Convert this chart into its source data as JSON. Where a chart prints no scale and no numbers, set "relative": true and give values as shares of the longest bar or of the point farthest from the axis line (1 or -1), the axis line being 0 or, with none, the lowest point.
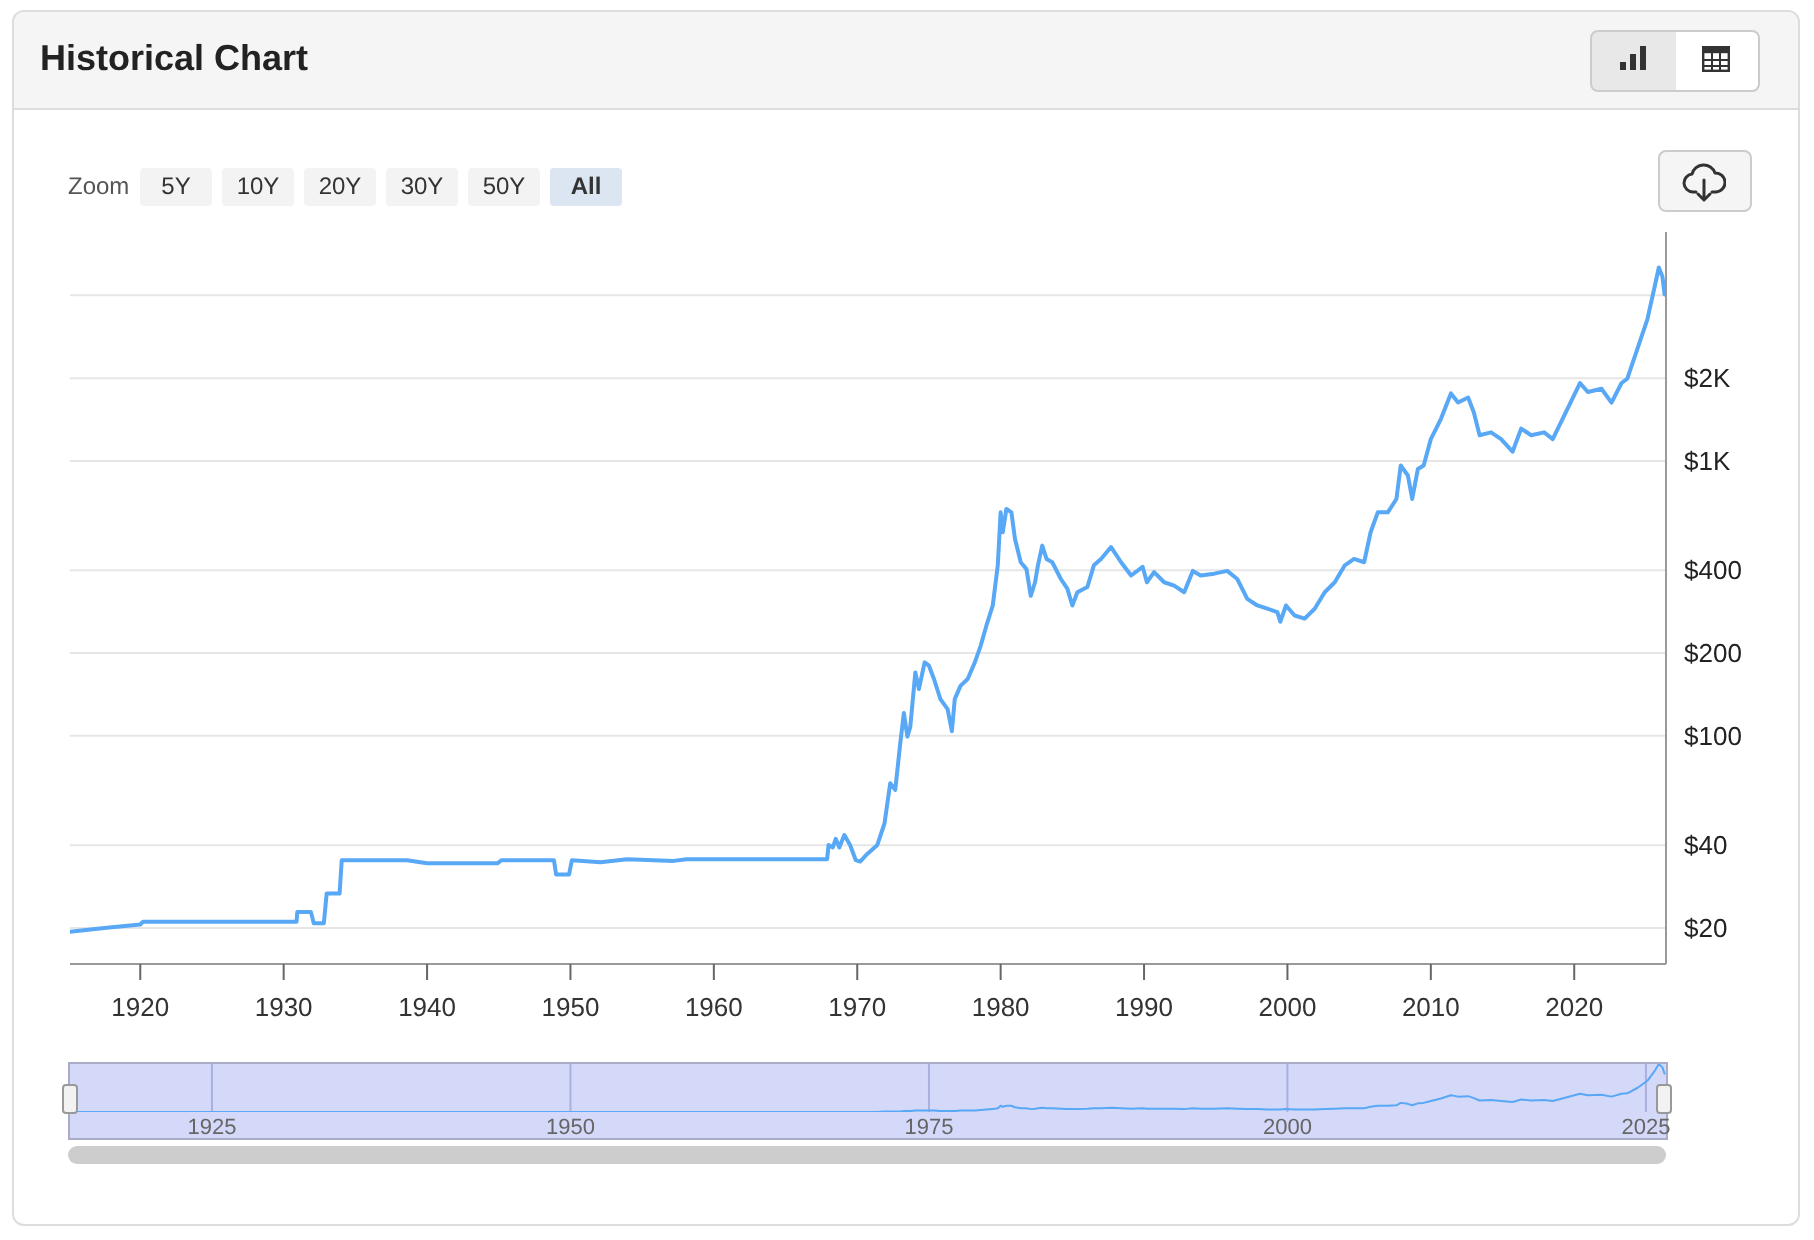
{
  "chart_data": [
    {
      "type": "line",
      "title": "Historical Chart",
      "annotations": [
        "Zoom",
        "5Y",
        "10Y",
        "20Y",
        "30Y",
        "50Y",
        "All"
      ],
      "x": [
        1915.1,
        1917.5,
        1920.0,
        1920.2,
        1930.9,
        1930.95,
        1931.9,
        1932.1,
        1932.8,
        1933.0,
        1933.9,
        1934.05,
        1938.6,
        1940.0,
        1944.9,
        1945.2,
        1948.85,
        1949.0,
        1949.9,
        1950.1,
        1952.1,
        1953.95,
        1957.2,
        1958.1,
        1967.9,
        1968.0,
        1968.3,
        1968.5,
        1968.75,
        1969.1,
        1969.5,
        1969.9,
        1970.2,
        1970.7,
        1971.4,
        1971.9,
        1972.3,
        1972.65,
        1973.0,
        1973.25,
        1973.5,
        1973.7,
        1974.05,
        1974.3,
        1974.7,
        1975.0,
        1975.35,
        1975.8,
        1976.3,
        1976.6,
        1976.8,
        1977.2,
        1977.7,
        1978.2,
        1978.6,
        1979.0,
        1979.45,
        1979.8,
        1980.0,
        1980.15,
        1980.4,
        1980.75,
        1981.0,
        1981.4,
        1981.8,
        1982.1,
        1982.4,
        1982.6,
        1982.9,
        1983.2,
        1983.6,
        1984.2,
        1984.65,
        1985.0,
        1985.35,
        1986.05,
        1986.5,
        1987.0,
        1987.7,
        1988.4,
        1989.1,
        1989.9,
        1990.2,
        1990.7,
        1991.4,
        1992.1,
        1992.8,
        1993.4,
        1993.95,
        1994.9,
        1995.8,
        1996.5,
        1997.2,
        1997.9,
        1998.6,
        1999.3,
        1999.5,
        1999.9,
        2000.5,
        2001.2,
        2001.9,
        2002.6,
        2003.3,
        2004.0,
        2004.65,
        2005.35,
        2005.8,
        2006.3,
        2007.0,
        2007.6,
        2007.9,
        2008.4,
        2008.7,
        2009.1,
        2009.5,
        2010.0,
        2010.7,
        2011.4,
        2011.9,
        2012.6,
        2013.0,
        2013.4,
        2014.2,
        2014.9,
        2015.7,
        2016.3,
        2017.0,
        2017.9,
        2018.5,
        2019.3,
        2020.4,
        2020.95,
        2021.9,
        2022.6,
        2023.3,
        2023.7,
        2024.4,
        2025.1,
        2025.6,
        2025.9,
        2026.15,
        2026.3
      ],
      "series": [
        {
          "color": "#58a8f6",
          "values": [
            19.4,
            20.0,
            20.6,
            21.1,
            21.1,
            22.9,
            22.9,
            20.8,
            20.8,
            26.7,
            26.7,
            35.3,
            35.3,
            34.4,
            34.4,
            35.3,
            35.3,
            31.3,
            31.3,
            35.3,
            34.7,
            35.6,
            35.1,
            35.6,
            35.6,
            40.1,
            39.3,
            42.2,
            39.3,
            43.6,
            40.1,
            35.3,
            34.9,
            37.2,
            40.1,
            48.0,
            67.2,
            63.6,
            94.0,
            121,
            99.4,
            108,
            170,
            148,
            185,
            180,
            161,
            136,
            125,
            104,
            136,
            152,
            161,
            185,
            212,
            251,
            298,
            417,
            650,
            550,
            669,
            650,
            520,
            428,
            404,
            323,
            362,
            417,
            492,
            440,
            428,
            372,
            343,
            298,
            333,
            348,
            417,
            440,
            486,
            428,
            383,
            412,
            362,
            394,
            362,
            352,
            333,
            398,
            383,
            389,
            398,
            372,
            315,
            298,
            290,
            282,
            260,
            298,
            274,
            267,
            290,
            333,
            362,
            417,
            440,
            428,
            550,
            650,
            650,
            727,
            962,
            885,
            727,
            935,
            962,
            1200,
            1420,
            1760,
            1630,
            1700,
            1500,
            1240,
            1270,
            1200,
            1080,
            1310,
            1240,
            1270,
            1200,
            1460,
            1920,
            1780,
            1830,
            1630,
            1920,
            1990,
            2550,
            3270,
            4280,
            5050,
            4680,
            4030
          ]
        }
      ],
      "xlim": [
        1915.1,
        2026.4
      ],
      "xticks": [
        1920,
        1930,
        1940,
        1950,
        1960,
        1970,
        1980,
        1990,
        2000,
        2010,
        2020
      ],
      "ylim": [
        14.8,
        6800
      ],
      "yticks": [
        {
          "value": 20,
          "label": "$20"
        },
        {
          "value": 40,
          "label": "$40"
        },
        {
          "value": 100,
          "label": "$100"
        },
        {
          "value": 200,
          "label": "$200"
        },
        {
          "value": 400,
          "label": "$400"
        },
        {
          "value": 1000,
          "label": "$1K"
        },
        {
          "value": 2000,
          "label": "$2K"
        },
        {
          "value": 4000,
          "label": null
        }
      ],
      "log": true,
      "grid": "y"
    },
    {
      "type": "line",
      "relative": true,
      "x": [
        1915.1,
        1917.5,
        1920.0,
        1920.2,
        1930.9,
        1930.95,
        1931.9,
        1932.1,
        1932.8,
        1933.0,
        1933.9,
        1934.05,
        1938.6,
        1940.0,
        1944.9,
        1945.2,
        1948.85,
        1949.0,
        1949.9,
        1950.1,
        1952.1,
        1953.95,
        1957.2,
        1958.1,
        1967.9,
        1968.0,
        1968.3,
        1968.5,
        1968.75,
        1969.1,
        1969.5,
        1969.9,
        1970.2,
        1970.7,
        1971.4,
        1971.9,
        1972.3,
        1972.65,
        1973.0,
        1973.25,
        1973.5,
        1973.7,
        1974.05,
        1974.3,
        1974.7,
        1975.0,
        1975.35,
        1975.8,
        1976.3,
        1976.6,
        1976.8,
        1977.2,
        1977.7,
        1978.2,
        1978.6,
        1979.0,
        1979.45,
        1979.8,
        1980.0,
        1980.15,
        1980.4,
        1980.75,
        1981.0,
        1981.4,
        1981.8,
        1982.1,
        1982.4,
        1982.6,
        1982.9,
        1983.2,
        1983.6,
        1984.2,
        1984.65,
        1985.0,
        1985.35,
        1986.05,
        1986.5,
        1987.0,
        1987.7,
        1988.4,
        1989.1,
        1989.9,
        1990.2,
        1990.7,
        1991.4,
        1992.1,
        1992.8,
        1993.4,
        1993.95,
        1994.9,
        1995.8,
        1996.5,
        1997.2,
        1997.9,
        1998.6,
        1999.3,
        1999.5,
        1999.9,
        2000.5,
        2001.2,
        2001.9,
        2002.6,
        2003.3,
        2004.0,
        2004.65,
        2005.35,
        2005.8,
        2006.3,
        2007.0,
        2007.6,
        2007.9,
        2008.4,
        2008.7,
        2009.1,
        2009.5,
        2010.0,
        2010.7,
        2011.4,
        2011.9,
        2012.6,
        2013.0,
        2013.4,
        2014.2,
        2014.9,
        2015.7,
        2016.3,
        2017.0,
        2017.9,
        2018.5,
        2019.3,
        2020.4,
        2020.95,
        2021.9,
        2022.6,
        2023.3,
        2023.7,
        2024.4,
        2025.1,
        2025.6,
        2025.9,
        2026.15,
        2026.3
      ],
      "values": [
        0,
        0,
        0,
        0,
        0,
        0,
        0,
        0,
        0,
        0,
        0,
        0,
        0,
        0,
        0,
        0,
        0,
        0,
        0,
        0,
        0,
        0,
        0,
        0,
        0,
        0,
        0,
        0,
        0,
        0,
        0,
        0,
        0,
        0,
        0,
        0.01,
        0.01,
        0.01,
        0.01,
        0.02,
        0.02,
        0.02,
        0.03,
        0.03,
        0.03,
        0.03,
        0.03,
        0.02,
        0.02,
        0.02,
        0.02,
        0.03,
        0.03,
        0.03,
        0.04,
        0.05,
        0.06,
        0.08,
        0.13,
        0.11,
        0.13,
        0.13,
        0.1,
        0.08,
        0.08,
        0.06,
        0.07,
        0.08,
        0.09,
        0.08,
        0.08,
        0.07,
        0.06,
        0.06,
        0.06,
        0.07,
        0.08,
        0.08,
        0.09,
        0.08,
        0.07,
        0.08,
        0.07,
        0.07,
        0.07,
        0.07,
        0.06,
        0.08,
        0.07,
        0.07,
        0.08,
        0.07,
        0.06,
        0.06,
        0.05,
        0.05,
        0.05,
        0.06,
        0.05,
        0.05,
        0.05,
        0.06,
        0.07,
        0.08,
        0.08,
        0.08,
        0.11,
        0.13,
        0.13,
        0.14,
        0.19,
        0.17,
        0.14,
        0.18,
        0.19,
        0.23,
        0.28,
        0.35,
        0.32,
        0.33,
        0.29,
        0.24,
        0.25,
        0.23,
        0.21,
        0.26,
        0.24,
        0.25,
        0.23,
        0.29,
        0.38,
        0.35,
        0.36,
        0.32,
        0.38,
        0.39,
        0.5,
        0.65,
        0.85,
        1,
        0.93,
        0.8
      ],
      "color": "#58a8f6",
      "xlim": [
        1915.1,
        2026.4
      ],
      "xticks": [
        1925,
        1950,
        1975,
        2000,
        2025
      ],
      "grid": "x"
    }
  ]
}
